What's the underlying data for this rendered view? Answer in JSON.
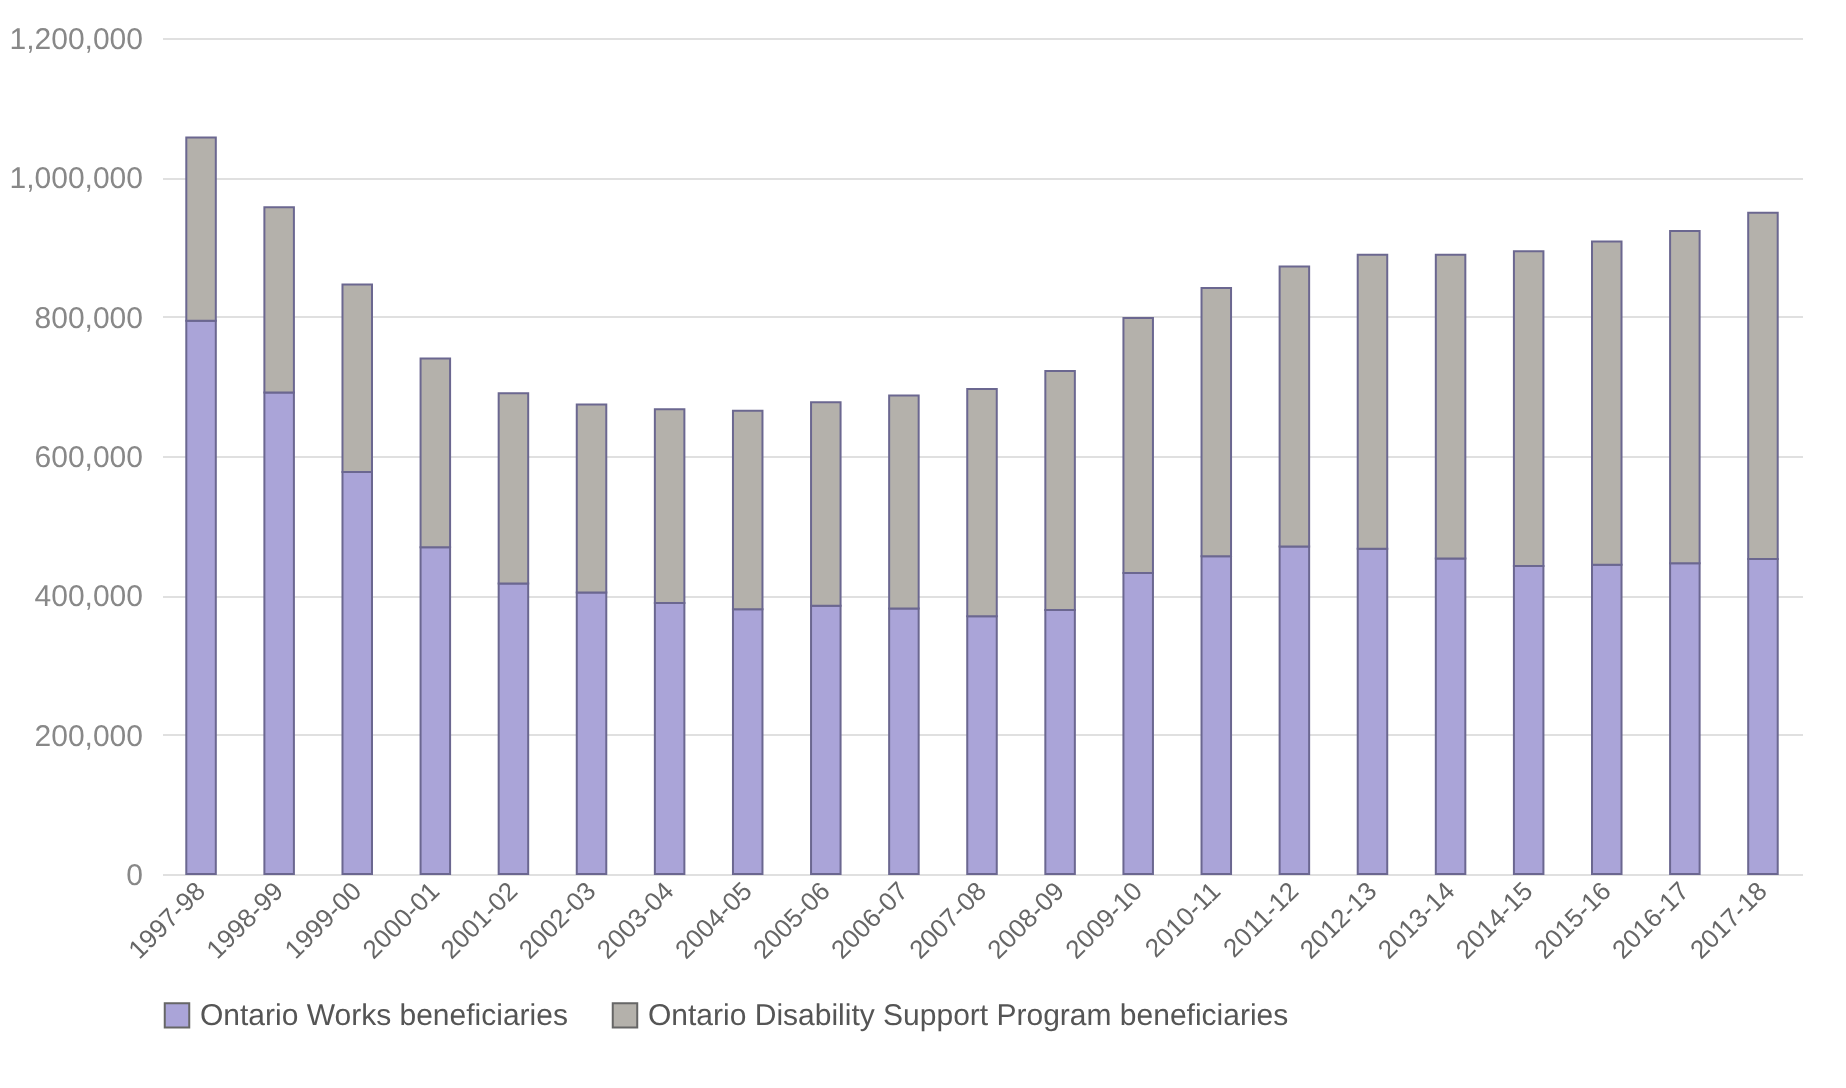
{
  "chart_data": {
    "type": "bar",
    "stacked": true,
    "categories": [
      "1997-98",
      "1998-99",
      "1999-00",
      "2000-01",
      "2001-02",
      "2002-03",
      "2003-04",
      "2004-05",
      "2005-06",
      "2006-07",
      "2007-08",
      "2008-09",
      "2009-10",
      "2010-11",
      "2011-12",
      "2012-13",
      "2013-14",
      "2014-15",
      "2015-16",
      "2016-17",
      "2017-18"
    ],
    "series": [
      {
        "name": "Ontario Works beneficiaries",
        "color": "#aaa4d8",
        "values": [
          794000,
          691000,
          577000,
          469000,
          417000,
          404000,
          389000,
          380000,
          385000,
          381000,
          370000,
          379000,
          432000,
          456000,
          470000,
          467000,
          453000,
          442000,
          444000,
          446000,
          452000
        ]
      },
      {
        "name": "Ontario Disability Support Program beneficiaries",
        "color": "#b4b1ab",
        "values": [
          263000,
          266000,
          269000,
          271000,
          273000,
          270000,
          278000,
          285000,
          292000,
          306000,
          326000,
          343000,
          366000,
          385000,
          402000,
          422000,
          436000,
          452000,
          464000,
          477000,
          497000
        ]
      }
    ],
    "ylim": [
      0,
      1200000
    ],
    "yticks": [
      {
        "value": 0,
        "label": "0"
      },
      {
        "value": 200000,
        "label": "200,000"
      },
      {
        "value": 400000,
        "label": "400,000"
      },
      {
        "value": 600000,
        "label": "600,000"
      },
      {
        "value": 800000,
        "label": "800,000"
      },
      {
        "value": 1000000,
        "label": "1,000,000"
      },
      {
        "value": 1200000,
        "label": "1,200,000"
      }
    ],
    "grid": "y",
    "legend": "bottom"
  }
}
